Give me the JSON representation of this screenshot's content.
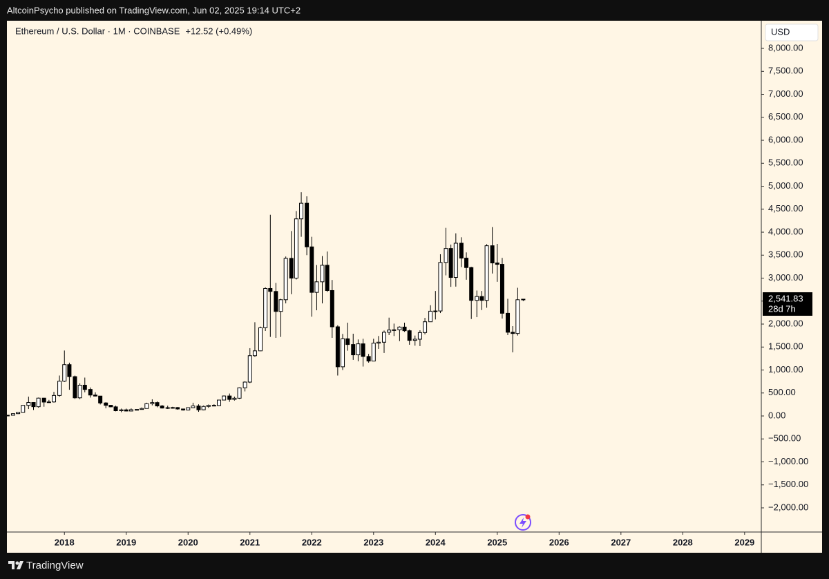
{
  "header": {
    "text": "AltcoinPsycho published on TradingView.com, Jun 02, 2025 19:14 UTC+2"
  },
  "footer": {
    "brand": "TradingView"
  },
  "chart_data": {
    "type": "candlestick",
    "title": "Ethereum / U.S. Dollar · 1M · COINBASE",
    "change": "+12.52 (+0.49%)",
    "currency": "USD",
    "last_price_label": "2,541.83",
    "countdown": "28d 7h",
    "up_color": "#ffffff",
    "down_color": "#000000",
    "border_color": "#000000",
    "x": [
      2017.08,
      2017.17,
      2017.25,
      2017.33,
      2017.42,
      2017.5,
      2017.58,
      2017.67,
      2017.75,
      2017.83,
      2017.92,
      2018,
      2018.08,
      2018.17,
      2018.25,
      2018.33,
      2018.42,
      2018.5,
      2018.58,
      2018.67,
      2018.75,
      2018.83,
      2018.92,
      2019,
      2019.08,
      2019.17,
      2019.25,
      2019.33,
      2019.42,
      2019.5,
      2019.58,
      2019.67,
      2019.75,
      2019.83,
      2019.92,
      2020,
      2020.08,
      2020.17,
      2020.25,
      2020.33,
      2020.42,
      2020.5,
      2020.58,
      2020.67,
      2020.75,
      2020.83,
      2020.92,
      2021,
      2021.08,
      2021.17,
      2021.25,
      2021.33,
      2021.42,
      2021.5,
      2021.58,
      2021.67,
      2021.75,
      2021.83,
      2021.92,
      2022,
      2022.08,
      2022.17,
      2022.25,
      2022.33,
      2022.42,
      2022.5,
      2022.58,
      2022.67,
      2022.75,
      2022.83,
      2022.92,
      2023,
      2023.08,
      2023.17,
      2023.25,
      2023.33,
      2023.42,
      2023.5,
      2023.58,
      2023.67,
      2023.75,
      2023.83,
      2023.92,
      2024,
      2024.08,
      2024.17,
      2024.25,
      2024.33,
      2024.42,
      2024.5,
      2024.58,
      2024.67,
      2024.75,
      2024.83,
      2024.92,
      2025,
      2025.08,
      2025.17,
      2025.25,
      2025.33,
      2025.42
    ],
    "open": [
      10.7,
      15.7,
      50,
      79,
      230,
      293,
      201,
      388,
      302,
      305,
      446,
      757,
      1117,
      856,
      395,
      670,
      577,
      455,
      433,
      283,
      232,
      198,
      113,
      133,
      107,
      136,
      141,
      162,
      268,
      291,
      218,
      172,
      180,
      183,
      152,
      130,
      180,
      218,
      134,
      207,
      231,
      226,
      346,
      435,
      360,
      386,
      613,
      737,
      1312,
      1417,
      1920,
      2775,
      2710,
      2275,
      2530,
      3430,
      3000,
      4290,
      4630,
      3680,
      2690,
      2920,
      3280,
      2730,
      1940,
      1070,
      1680,
      1555,
      1330,
      1570,
      1295,
      1195,
      1585,
      1605,
      1822,
      1870,
      1875,
      1935,
      1855,
      1645,
      1670,
      1815,
      2050,
      2280,
      2285,
      3340,
      3645,
      3015,
      3760,
      3435,
      3230,
      2515,
      2600,
      2515,
      3705,
      3330,
      3300,
      2235,
      1822,
      1795,
      2529.31
    ],
    "high": [
      16,
      55,
      80,
      233,
      420,
      300,
      400,
      395,
      350,
      525,
      880,
      1424,
      1160,
      880,
      710,
      835,
      620,
      515,
      435,
      300,
      235,
      225,
      160,
      160,
      165,
      145,
      185,
      288,
      362,
      316,
      239,
      224,
      199,
      193,
      153,
      185,
      288,
      254,
      227,
      249,
      254,
      349,
      446,
      488,
      420,
      622,
      755,
      1475,
      2040,
      1945,
      2800,
      4380,
      2895,
      2550,
      3470,
      4025,
      4460,
      4870,
      4780,
      3900,
      3285,
      3480,
      3580,
      2960,
      1975,
      1785,
      2030,
      1790,
      1665,
      1680,
      1350,
      1680,
      1740,
      1860,
      2140,
      2010,
      1950,
      2030,
      1880,
      1750,
      1865,
      2135,
      2410,
      2720,
      3520,
      4095,
      3730,
      3975,
      3890,
      3560,
      3245,
      2730,
      2720,
      3740,
      4110,
      3745,
      3440,
      2550,
      1955,
      2790,
      2545
    ],
    "low": [
      10.5,
      15.5,
      42,
      78,
      150,
      130,
      180,
      200,
      285,
      290,
      420,
      740,
      570,
      370,
      365,
      515,
      400,
      425,
      250,
      167,
      190,
      100,
      82,
      100,
      102,
      126,
      140,
      160,
      230,
      189,
      161,
      152,
      158,
      136,
      117,
      126,
      178,
      90,
      125,
      177,
      216,
      222,
      340,
      308,
      335,
      371,
      534,
      715,
      1285,
      1410,
      1850,
      1720,
      1700,
      1720,
      2450,
      2650,
      2970,
      3900,
      3500,
      2160,
      2300,
      2450,
      2700,
      1700,
      880,
      1000,
      1420,
      1220,
      1190,
      1075,
      1160,
      1190,
      1460,
      1370,
      1760,
      1740,
      1630,
      1830,
      1550,
      1530,
      1520,
      1775,
      2050,
      2100,
      2240,
      3060,
      2810,
      2815,
      3240,
      2965,
      2110,
      2150,
      2305,
      2355,
      3100,
      2920,
      2120,
      1760,
      1385,
      1750,
      2500
    ],
    "close": [
      15.7,
      50,
      79,
      230,
      293,
      201,
      388,
      302,
      305,
      446,
      757,
      1117,
      856,
      395,
      670,
      577,
      455,
      433,
      283,
      232,
      198,
      113,
      133,
      107,
      136,
      141,
      162,
      268,
      291,
      218,
      172,
      180,
      183,
      152,
      130,
      180,
      218,
      134,
      207,
      231,
      226,
      346,
      435,
      360,
      386,
      613,
      737,
      1312,
      1417,
      1920,
      2775,
      2710,
      2275,
      2530,
      3430,
      3000,
      4290,
      4630,
      3680,
      2690,
      2920,
      3280,
      2730,
      1940,
      1070,
      1680,
      1555,
      1330,
      1570,
      1295,
      1195,
      1585,
      1605,
      1822,
      1870,
      1875,
      1935,
      1855,
      1645,
      1670,
      1815,
      2050,
      2280,
      2285,
      3340,
      3645,
      3015,
      3760,
      3435,
      3230,
      2515,
      2600,
      2515,
      3705,
      3330,
      3300,
      2235,
      1822,
      1795,
      2529.31,
      2541.83
    ],
    "xlim": [
      2017.07,
      2029.27
    ],
    "xticks": [
      2018,
      2019,
      2020,
      2021,
      2022,
      2023,
      2024,
      2025,
      2026,
      2027,
      2028,
      2029
    ],
    "ylim": [
      -2526,
      8602
    ],
    "yticks": [
      {
        "value": -2000,
        "label": "−2,000.00"
      },
      {
        "value": -1500,
        "label": "−1,500.00"
      },
      {
        "value": -1000,
        "label": "−1,000.00"
      },
      {
        "value": -500,
        "label": "−500.00"
      },
      {
        "value": 0,
        "label": "0.00"
      },
      {
        "value": 500,
        "label": "500.00"
      },
      {
        "value": 1000,
        "label": "1,000.00"
      },
      {
        "value": 1500,
        "label": "1,500.00"
      },
      {
        "value": 2000,
        "label": "2,000.00"
      },
      {
        "value": 2500,
        "label": "2,500.00"
      },
      {
        "value": 3000,
        "label": "3,000.00"
      },
      {
        "value": 3500,
        "label": "3,500.00"
      },
      {
        "value": 4000,
        "label": "4,000.00"
      },
      {
        "value": 4500,
        "label": "4,500.00"
      },
      {
        "value": 5000,
        "label": "5,000.00"
      },
      {
        "value": 5500,
        "label": "5,500.00"
      },
      {
        "value": 6000,
        "label": "6,000.00"
      },
      {
        "value": 6500,
        "label": "6,500.00"
      },
      {
        "value": 7000,
        "label": "7,000.00"
      },
      {
        "value": 7500,
        "label": "7,500.00"
      },
      {
        "value": 8000,
        "label": "8,000.00"
      }
    ]
  }
}
